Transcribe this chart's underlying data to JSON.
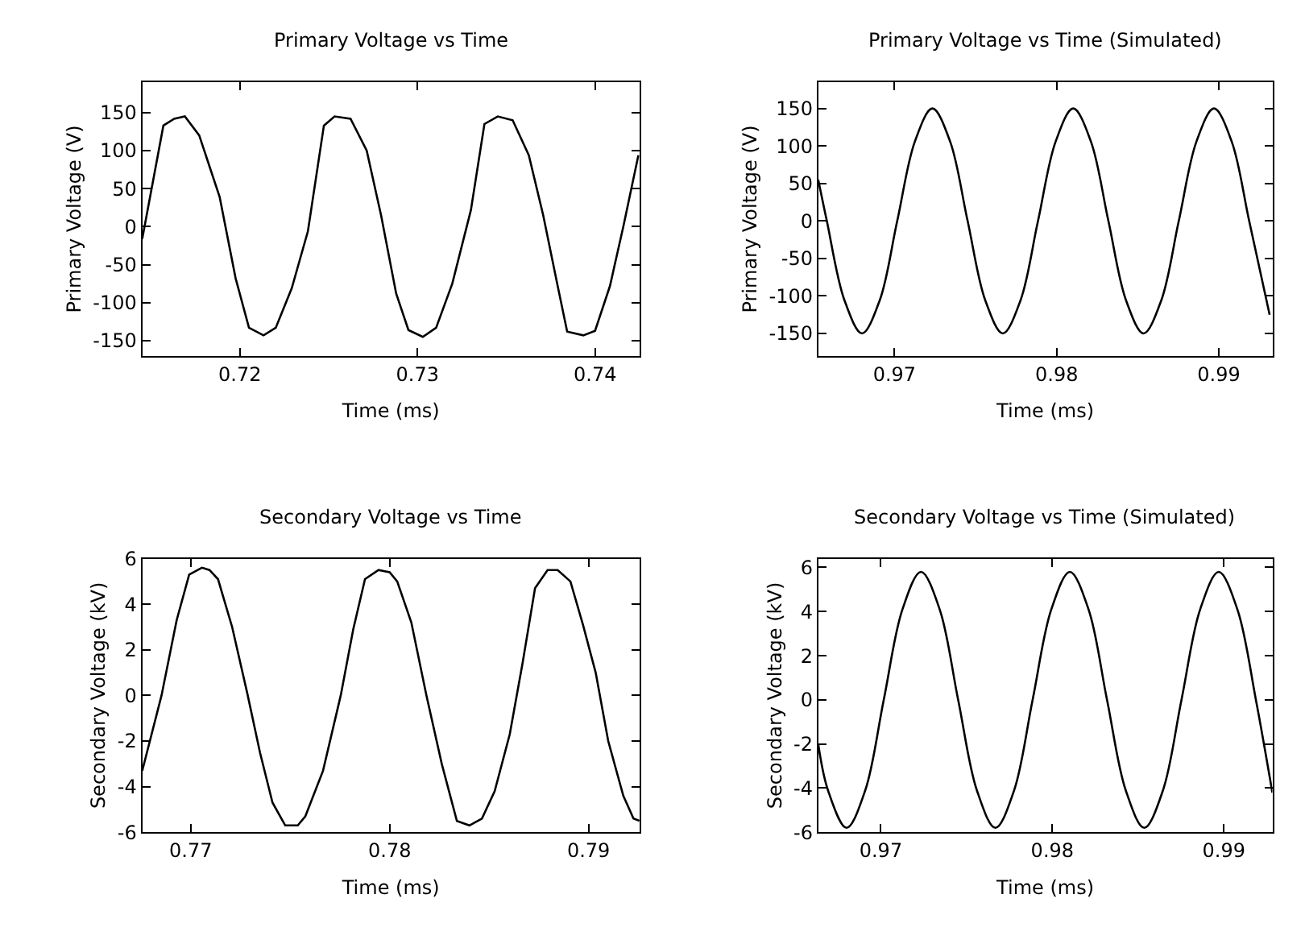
{
  "chart_data": [
    {
      "type": "line",
      "title": "Primary Voltage vs Time",
      "xlabel": "Time (ms)",
      "ylabel": "Primary Voltage (V)",
      "color": "#000000",
      "xlim": [
        0.7145,
        0.7425
      ],
      "ylim": [
        -170,
        190
      ],
      "xticks": [
        0.72,
        0.73,
        0.74
      ],
      "yticks": [
        -150,
        -100,
        -50,
        0,
        50,
        100,
        150
      ],
      "x": [
        0.7145,
        0.71569,
        0.7163,
        0.7169,
        0.71771,
        0.71886,
        0.71976,
        0.72051,
        0.72133,
        0.72202,
        0.72292,
        0.72383,
        0.72473,
        0.72533,
        0.72623,
        0.72714,
        0.72795,
        0.7288,
        0.72949,
        0.7303,
        0.73105,
        0.73196,
        0.73301,
        0.73377,
        0.73452,
        0.73536,
        0.73627,
        0.73708,
        0.73792,
        0.73843,
        0.73934,
        0.74,
        0.74084,
        0.7416,
        0.74244
      ],
      "values": [
        -16,
        133,
        142,
        145,
        120,
        39,
        -68,
        -133,
        -143,
        -133,
        -81,
        -6,
        133,
        145,
        142,
        100,
        15,
        -88,
        -136,
        -145,
        -133,
        -75,
        22,
        135,
        145,
        140,
        94,
        15,
        -81,
        -138,
        -143,
        -137,
        -78,
        1,
        94
      ]
    },
    {
      "type": "line",
      "title": "Primary Voltage vs Time (Simulated)",
      "xlabel": "Time (ms)",
      "ylabel": "Primary Voltage (V)",
      "color": "#000000",
      "xlim": [
        0.9653,
        0.9933
      ],
      "ylim": [
        -180,
        185
      ],
      "xticks": [
        0.97,
        0.98,
        0.99
      ],
      "yticks": [
        -150,
        -100,
        -50,
        0,
        50,
        100,
        150
      ],
      "x": [
        0.9653,
        0.96583,
        0.96692,
        0.968,
        0.96909,
        0.97017,
        0.97126,
        0.97234,
        0.97343,
        0.97451,
        0.9756,
        0.97668,
        0.97777,
        0.97885,
        0.97994,
        0.98102,
        0.98211,
        0.98319,
        0.98428,
        0.98536,
        0.98645,
        0.98753,
        0.98862,
        0.9897,
        0.99079,
        0.99187,
        0.99313
      ],
      "values": [
        55,
        0,
        -106,
        -150,
        -106,
        0,
        106,
        150,
        106,
        0,
        -106,
        -150,
        -106,
        0,
        106,
        150,
        106,
        0,
        -106,
        -150,
        -106,
        0,
        106,
        150,
        106,
        0,
        -125
      ]
    },
    {
      "type": "line",
      "title": "Secondary Voltage vs Time",
      "xlabel": "Time (ms)",
      "ylabel": "Secondary Voltage (kV)",
      "color": "#000000",
      "xlim": [
        0.76756,
        0.79256
      ],
      "ylim": [
        -6,
        6
      ],
      "xticks": [
        0.77,
        0.78,
        0.79
      ],
      "yticks": [
        -6,
        -4,
        -2,
        0,
        2,
        4,
        6
      ],
      "x": [
        0.76756,
        0.76853,
        0.76929,
        0.76992,
        0.77056,
        0.77094,
        0.77137,
        0.77208,
        0.77284,
        0.77348,
        0.77411,
        0.77475,
        0.77538,
        0.77576,
        0.77665,
        0.77754,
        0.77817,
        0.77876,
        0.77944,
        0.78,
        0.78038,
        0.78109,
        0.78185,
        0.78262,
        0.78338,
        0.78401,
        0.78464,
        0.78528,
        0.78604,
        0.78668,
        0.78731,
        0.78794,
        0.78845,
        0.78909,
        0.78972,
        0.79036,
        0.79099,
        0.79175,
        0.79226,
        0.79256
      ],
      "values": [
        -3.3,
        0,
        3.3,
        5.3,
        5.6,
        5.5,
        5.1,
        3.0,
        0.1,
        -2.5,
        -4.7,
        -5.7,
        -5.7,
        -5.3,
        -3.3,
        0,
        2.9,
        5.1,
        5.5,
        5.4,
        5.0,
        3.2,
        0,
        -3.0,
        -5.5,
        -5.7,
        -5.4,
        -4.2,
        -1.7,
        1.4,
        4.7,
        5.5,
        5.5,
        5.0,
        3.1,
        1.0,
        -2.0,
        -4.4,
        -5.4,
        -5.5
      ]
    },
    {
      "type": "line",
      "title": "Secondary Voltage vs Time (Simulated)",
      "xlabel": "Time (ms)",
      "ylabel": "Secondary Voltage (kV)",
      "color": "#000000",
      "xlim": [
        0.96635,
        0.99283
      ],
      "ylim": [
        -6,
        6.4
      ],
      "xticks": [
        0.97,
        0.98,
        0.99
      ],
      "yticks": [
        -6,
        -4,
        -2,
        0,
        2,
        4,
        6
      ],
      "x": [
        0.96635,
        0.96692,
        0.968,
        0.96909,
        0.97017,
        0.97126,
        0.97234,
        0.97343,
        0.97451,
        0.9756,
        0.97668,
        0.97777,
        0.97885,
        0.97994,
        0.98102,
        0.98211,
        0.98319,
        0.98428,
        0.98536,
        0.98645,
        0.98753,
        0.98862,
        0.9897,
        0.99079,
        0.99187,
        0.99283
      ],
      "values": [
        -2.0,
        -4.1,
        -5.8,
        -4.1,
        0,
        4.1,
        5.8,
        4.1,
        0,
        -4.1,
        -5.8,
        -4.1,
        0,
        4.1,
        5.8,
        4.1,
        0,
        -4.1,
        -5.8,
        -4.1,
        0,
        4.1,
        5.8,
        4.1,
        0,
        -4.2
      ]
    }
  ]
}
